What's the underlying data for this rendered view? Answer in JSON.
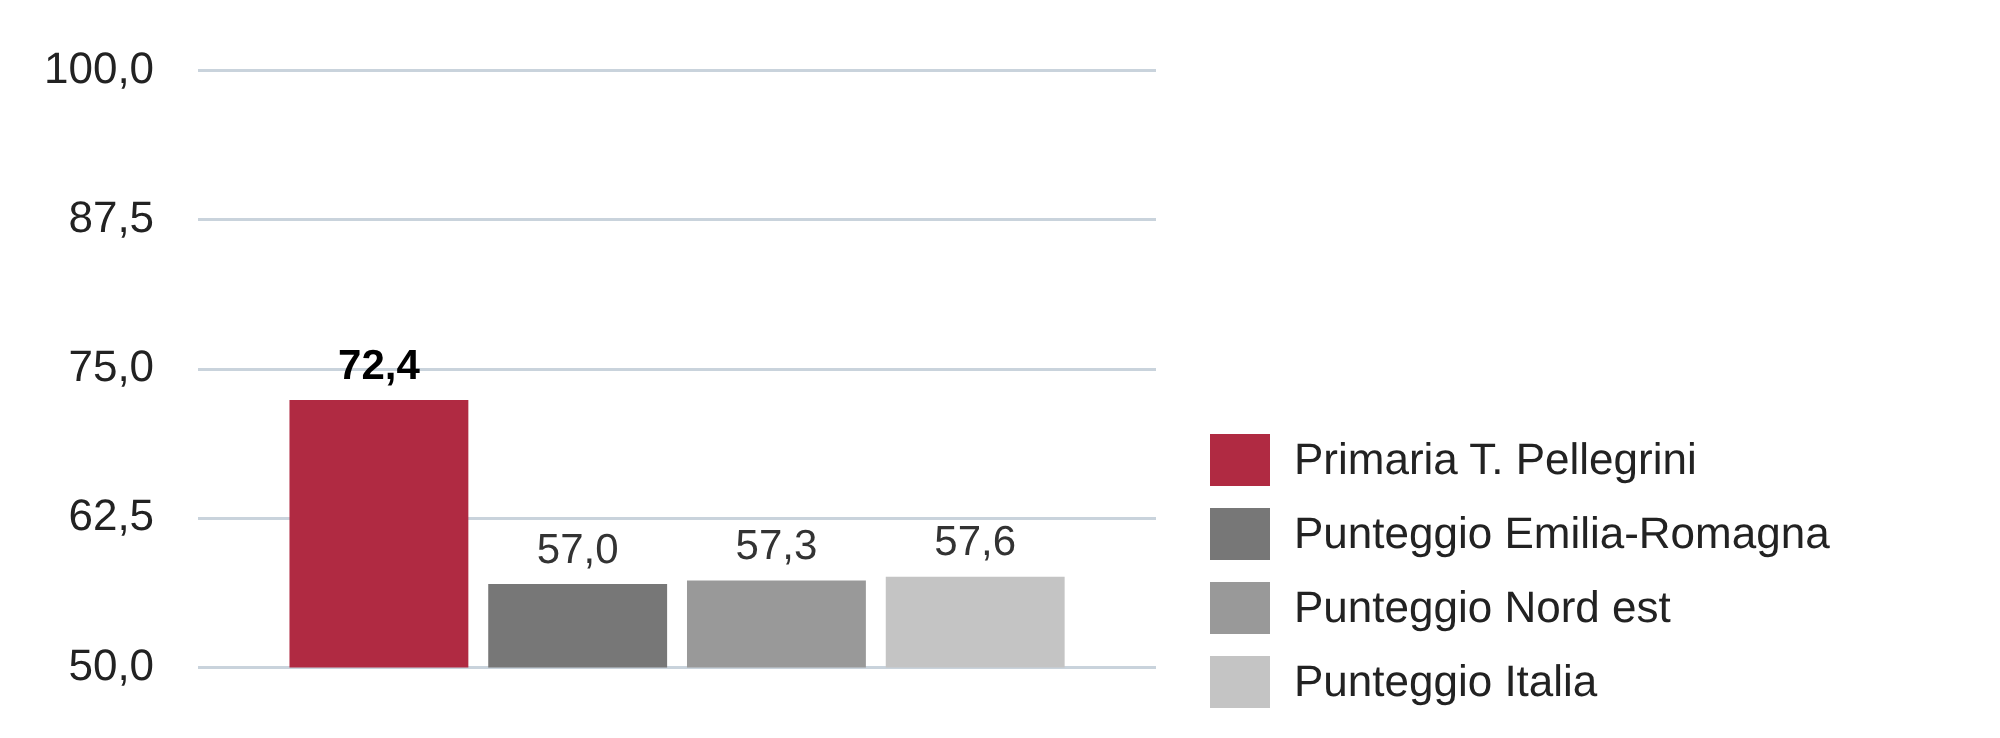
{
  "chart_data": {
    "type": "bar",
    "categories": [
      null
    ],
    "series": [
      {
        "name": "Primaria T. Pellegrini",
        "color": "#b02a42",
        "values": [
          72.4
        ],
        "value_labels": [
          "72,4"
        ]
      },
      {
        "name": "Punteggio Emilia-Romagna",
        "color": "#777777",
        "values": [
          57.0
        ],
        "value_labels": [
          "57,0"
        ]
      },
      {
        "name": "Punteggio Nord est",
        "color": "#999999",
        "values": [
          57.3
        ],
        "value_labels": [
          "57,3"
        ]
      },
      {
        "name": "Punteggio Italia",
        "color": "#c4c4c4",
        "values": [
          57.6
        ],
        "value_labels": [
          "57,6"
        ]
      }
    ],
    "ylim": [
      50,
      100
    ],
    "yticks": [
      {
        "value": 50,
        "label": "50,0"
      },
      {
        "value": 62.5,
        "label": "62,5"
      },
      {
        "value": 75,
        "label": "75,0"
      },
      {
        "value": 87.5,
        "label": "87,5"
      },
      {
        "value": 100,
        "label": "100,0"
      }
    ],
    "grid": "y",
    "legend": "bottom right",
    "tick_labels": "y"
  }
}
